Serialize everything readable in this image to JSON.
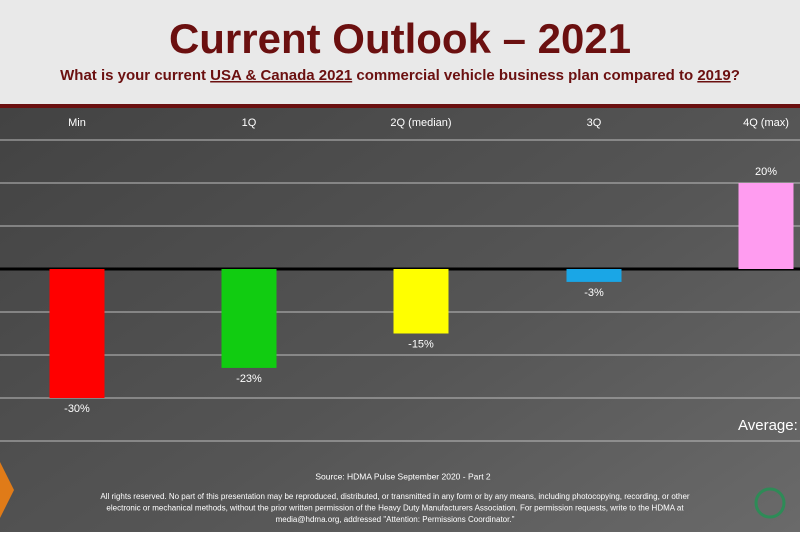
{
  "chart_data": {
    "type": "bar",
    "title": "Current Outlook – 2021",
    "subtitle_parts": [
      "What is your current ",
      "USA & Canada 2021",
      " commercial vehicle business plan compared to ",
      "2019",
      "?"
    ],
    "categories": [
      "Min",
      "1Q",
      "2Q (median)",
      "3Q",
      "4Q (max)"
    ],
    "values": [
      -30,
      -23,
      -15,
      -3,
      20
    ],
    "value_labels": [
      "-30%",
      "-23%",
      "-15%",
      "-3%",
      "20%"
    ],
    "colors": [
      "#ff0000",
      "#11cc11",
      "#ffff00",
      "#1aa6e6",
      "#ff9cf0"
    ],
    "ylim": [
      -40,
      30
    ],
    "yticks": [
      -40,
      -30,
      -20,
      -10,
      0,
      10,
      20,
      30
    ],
    "grid": true,
    "annotation": "Average:",
    "source": "Source: HDMA Pulse September 2020 - Part 2",
    "rights": [
      "All rights reserved. No part of this presentation may be reproduced, distributed, or transmitted in any form or by any means, including photocopying, recording, or other",
      "electronic or mechanical methods, without the prior written permission of the Heavy Duty Manufacturers Association. For permission requests, write to the HDMA at",
      "media@hdma.org, addressed \"Attention: Permissions Coordinator.\""
    ]
  }
}
